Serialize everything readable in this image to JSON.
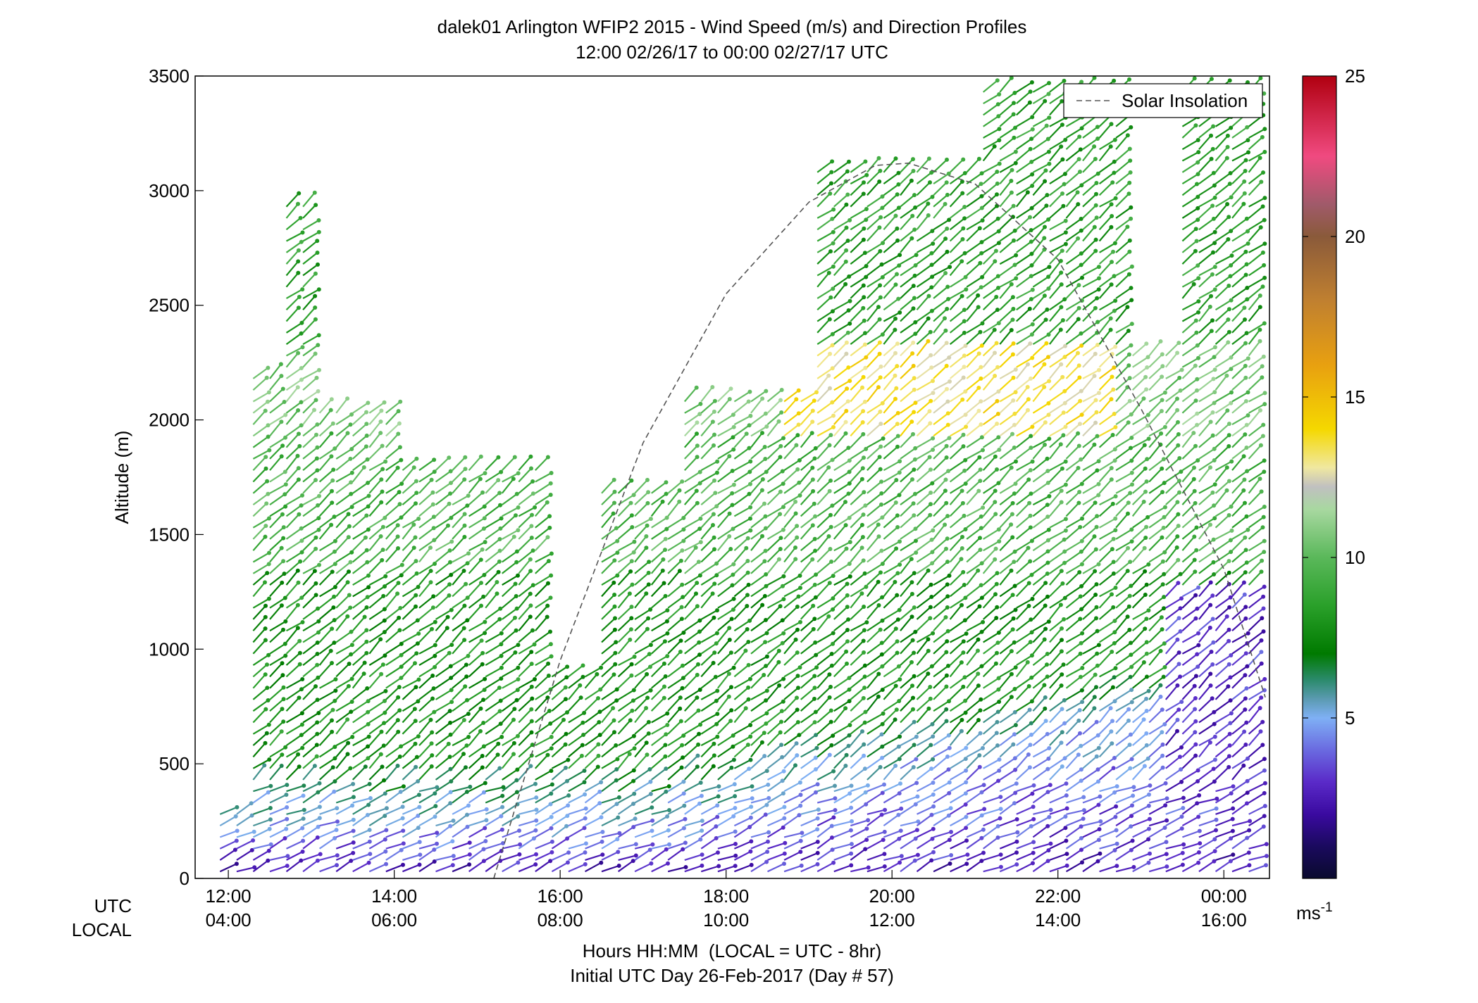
{
  "chart_data": {
    "type": "wind-barb-profile",
    "title": "dalek01 Arlington WFIP2 2015 - Wind Speed (m/s) and Direction Profiles",
    "subtitle": "12:00 02/26/17 to 00:00 02/27/17  UTC",
    "ylabel": "Altitude (m)",
    "xlabel": "Hours HH:MM  (LOCAL = UTC - 8hr)",
    "footer": "Initial UTC Day 26-Feb-2017 (Day # 57)",
    "x_row_labels": [
      "UTC",
      "LOCAL"
    ],
    "ylim": [
      0,
      3500
    ],
    "y_ticks": [
      0,
      500,
      1000,
      1500,
      2000,
      2500,
      3000,
      3500
    ],
    "xlim_hours": [
      11.6,
      24.55
    ],
    "x_ticks": [
      {
        "hour": 12,
        "utc": "12:00",
        "local": "04:00"
      },
      {
        "hour": 14,
        "utc": "14:00",
        "local": "06:00"
      },
      {
        "hour": 16,
        "utc": "16:00",
        "local": "08:00"
      },
      {
        "hour": 18,
        "utc": "18:00",
        "local": "10:00"
      },
      {
        "hour": 20,
        "utc": "20:00",
        "local": "12:00"
      },
      {
        "hour": 22,
        "utc": "22:00",
        "local": "14:00"
      },
      {
        "hour": 24,
        "utc": "00:00",
        "local": "16:00"
      }
    ],
    "legend": {
      "label": "Solar Insolation",
      "position": "top-right",
      "line_color": "#555555"
    },
    "colorbar": {
      "range": [
        0,
        25
      ],
      "ticks": [
        5,
        10,
        15,
        20,
        25
      ],
      "unit": "ms",
      "unit_exponent": "-1",
      "stops": [
        {
          "v": 0,
          "color": "#0a0a2e"
        },
        {
          "v": 1,
          "color": "#1a0a5e"
        },
        {
          "v": 2,
          "color": "#3a0aa0"
        },
        {
          "v": 3,
          "color": "#5a2ac8"
        },
        {
          "v": 4,
          "color": "#6a6ae0"
        },
        {
          "v": 5,
          "color": "#7fb0f5"
        },
        {
          "v": 5.6,
          "color": "#5a9ab0"
        },
        {
          "v": 6.2,
          "color": "#2a8a6a"
        },
        {
          "v": 7,
          "color": "#007a00"
        },
        {
          "v": 8.5,
          "color": "#2aa02a"
        },
        {
          "v": 10,
          "color": "#5ab85a"
        },
        {
          "v": 11.5,
          "color": "#a8d8a0"
        },
        {
          "v": 12.2,
          "color": "#c0c0c0"
        },
        {
          "v": 12.8,
          "color": "#f0e8a0"
        },
        {
          "v": 14,
          "color": "#f5d800"
        },
        {
          "v": 16,
          "color": "#e8a010"
        },
        {
          "v": 18,
          "color": "#c08030"
        },
        {
          "v": 20,
          "color": "#8a5a3a"
        },
        {
          "v": 21,
          "color": "#a05a6a"
        },
        {
          "v": 22.5,
          "color": "#f04a80"
        },
        {
          "v": 25,
          "color": "#b00010"
        }
      ]
    },
    "solar_insolation_curve": {
      "hours": [
        15.2,
        16.0,
        17.0,
        18.0,
        19.0,
        19.8,
        20.2,
        21.0,
        22.0,
        23.0,
        24.0,
        24.5
      ],
      "altitude_scaled": [
        0,
        950,
        1900,
        2550,
        2950,
        3110,
        3120,
        3030,
        2700,
        2050,
        1350,
        790
      ]
    },
    "profiles": {
      "time_step_hours": 0.2,
      "start_hour": 11.9,
      "end_hour": 24.3,
      "note": "wind barbs: direction shown as shaft angle, speed as color"
    }
  }
}
